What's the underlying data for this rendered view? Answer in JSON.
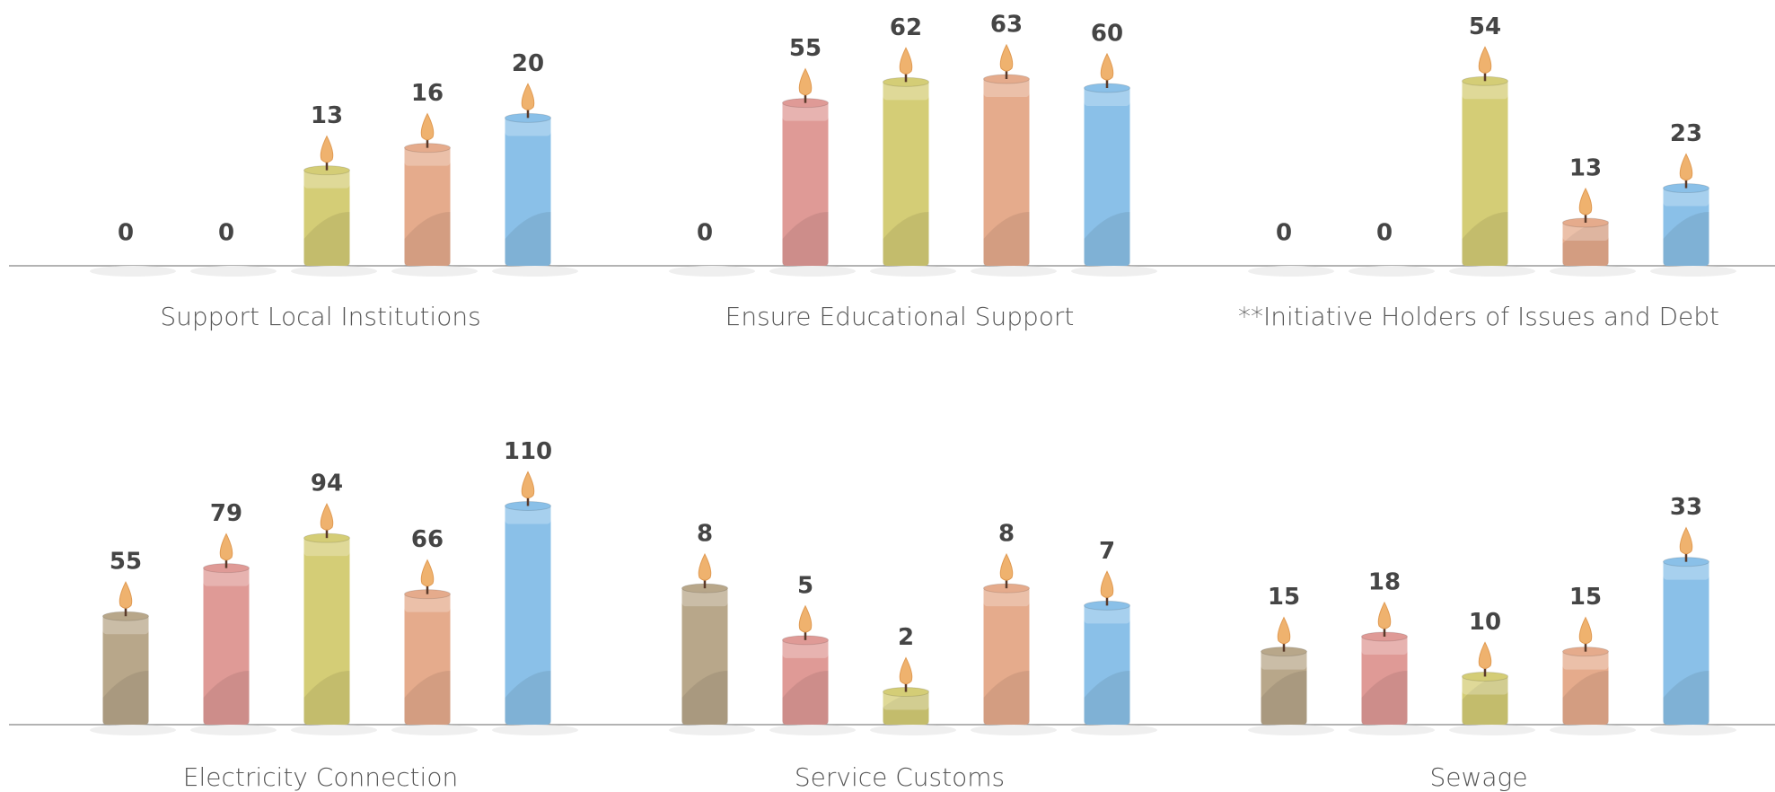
{
  "chart_data": [
    {
      "type": "bar",
      "title": "Support Local Institutions",
      "categories": [
        null,
        null,
        null,
        null,
        null
      ],
      "values": [
        0,
        0,
        13,
        16,
        20
      ],
      "colors": [
        "#b8a78a",
        "#df9a96",
        "#d4cd76",
        "#e5ab8c",
        "#8ac0e8"
      ],
      "ylim": [
        0,
        30
      ]
    },
    {
      "type": "bar",
      "title": "Ensure Educational Support",
      "categories": [
        null,
        null,
        null,
        null,
        null
      ],
      "values": [
        0,
        55,
        62,
        63,
        60
      ],
      "colors": [
        "#b8a78a",
        "#df9a96",
        "#d4cd76",
        "#e5ab8c",
        "#8ac0e8"
      ],
      "ylim": [
        0,
        75
      ]
    },
    {
      "type": "bar",
      "title": "**Initiative Holders of Issues and Debt",
      "categories": [
        null,
        null,
        null,
        null,
        null
      ],
      "values": [
        0,
        0,
        54,
        13,
        23
      ],
      "colors": [
        "#b8a78a",
        "#df9a96",
        "#d4cd76",
        "#e5ab8c",
        "#8ac0e8"
      ],
      "ylim": [
        0,
        65
      ]
    },
    {
      "type": "bar",
      "title": "Electricity Connection",
      "categories": [
        null,
        null,
        null,
        null,
        null
      ],
      "values": [
        55,
        79,
        94,
        66,
        110
      ],
      "colors": [
        "#b8a78a",
        "#df9a96",
        "#d4cd76",
        "#e5ab8c",
        "#8ac0e8"
      ],
      "ylim": [
        0,
        112
      ]
    },
    {
      "type": "bar",
      "title": "Service Customs",
      "categories": [
        null,
        null,
        null,
        null,
        null
      ],
      "values": [
        8,
        5,
        2,
        8,
        7
      ],
      "colors": [
        "#b8a78a",
        "#df9a96",
        "#d4cd76",
        "#e5ab8c",
        "#8ac0e8"
      ],
      "ylim": [
        0,
        13
      ]
    },
    {
      "type": "bar",
      "title": "Sewage",
      "categories": [
        null,
        null,
        null,
        null,
        null
      ],
      "values": [
        15,
        18,
        10,
        15,
        33
      ],
      "colors": [
        "#b8a78a",
        "#df9a96",
        "#d4cd76",
        "#e5ab8c",
        "#8ac0e8"
      ],
      "ylim": [
        0,
        45
      ]
    }
  ]
}
